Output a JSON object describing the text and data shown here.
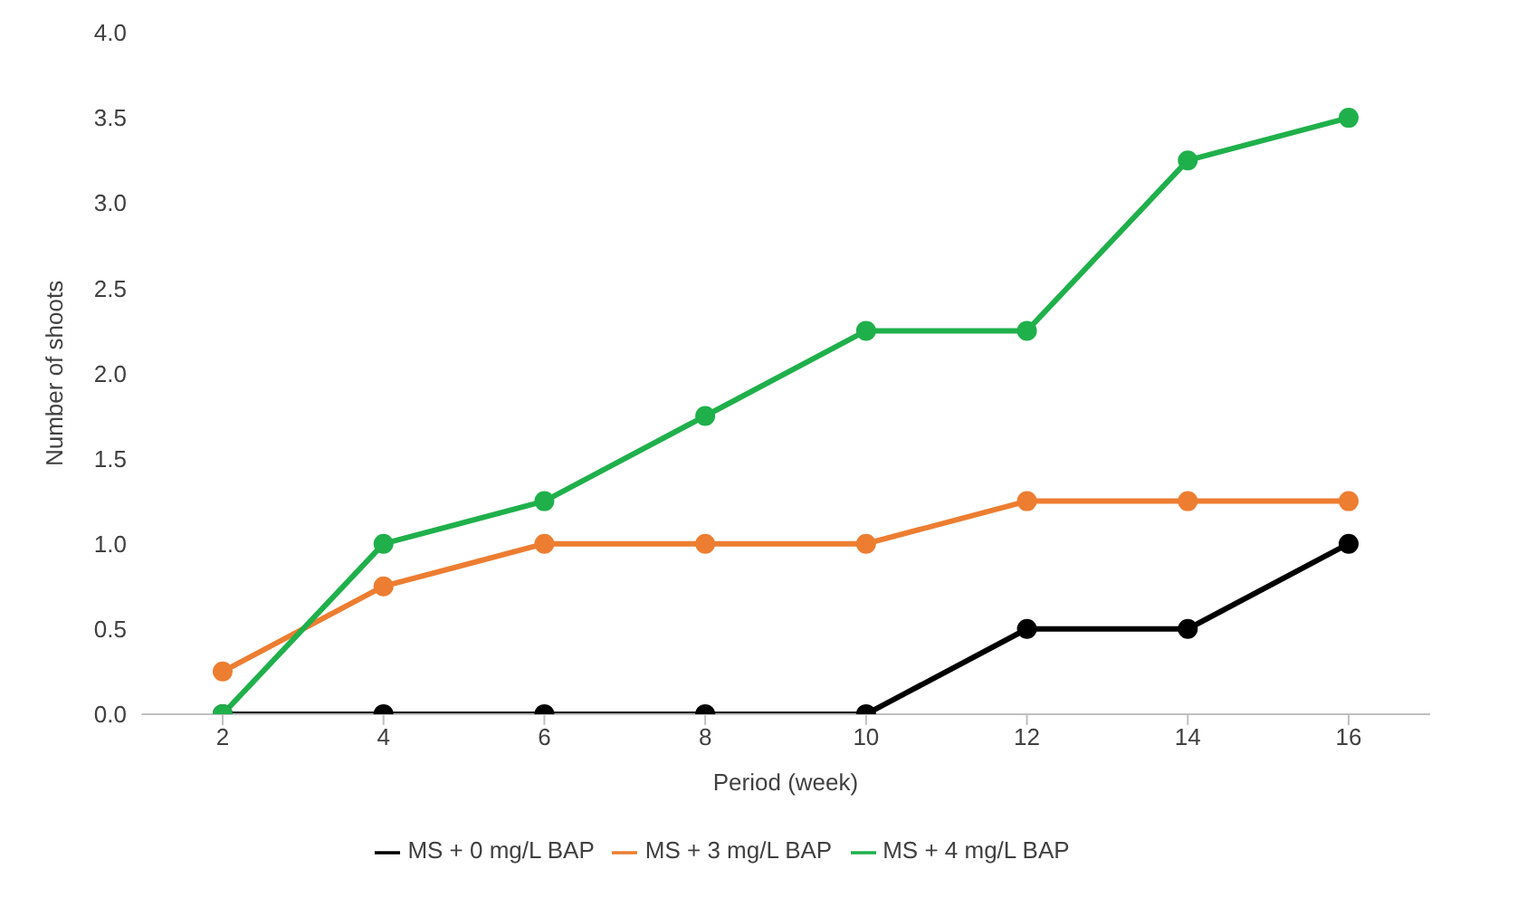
{
  "chart_data": {
    "type": "line",
    "xlabel": "Period (week)",
    "ylabel": "Number of shoots",
    "categories": [
      "2",
      "4",
      "6",
      "8",
      "10",
      "12",
      "14",
      "16"
    ],
    "series": [
      {
        "name": "MS + 0 mg/L BAP",
        "color": "#000000",
        "values": [
          0,
          0,
          0,
          0,
          0,
          0.5,
          0.5,
          1.0
        ]
      },
      {
        "name": "MS + 3 mg/L BAP",
        "color": "#ed7d31",
        "values": [
          0.25,
          0.75,
          1.0,
          1.0,
          1.0,
          1.25,
          1.25,
          1.25
        ]
      },
      {
        "name": "MS + 4 mg/L BAP",
        "color": "#1fb04b",
        "values": [
          0,
          1.0,
          1.25,
          1.75,
          2.25,
          2.25,
          3.25,
          3.5
        ]
      }
    ],
    "ylim": [
      0,
      4
    ],
    "yticks": [
      {
        "value": 0,
        "label": "0.0"
      },
      0.5,
      {
        "value": 1,
        "label": "1.0"
      },
      1.5,
      {
        "value": 2,
        "label": "2.0"
      },
      2.5,
      {
        "value": 3,
        "label": "3.0"
      },
      3.5,
      {
        "value": 4,
        "label": "4.0"
      }
    ],
    "grid": false,
    "legend": "bottom",
    "marker": "circle",
    "line_style": "solid"
  }
}
